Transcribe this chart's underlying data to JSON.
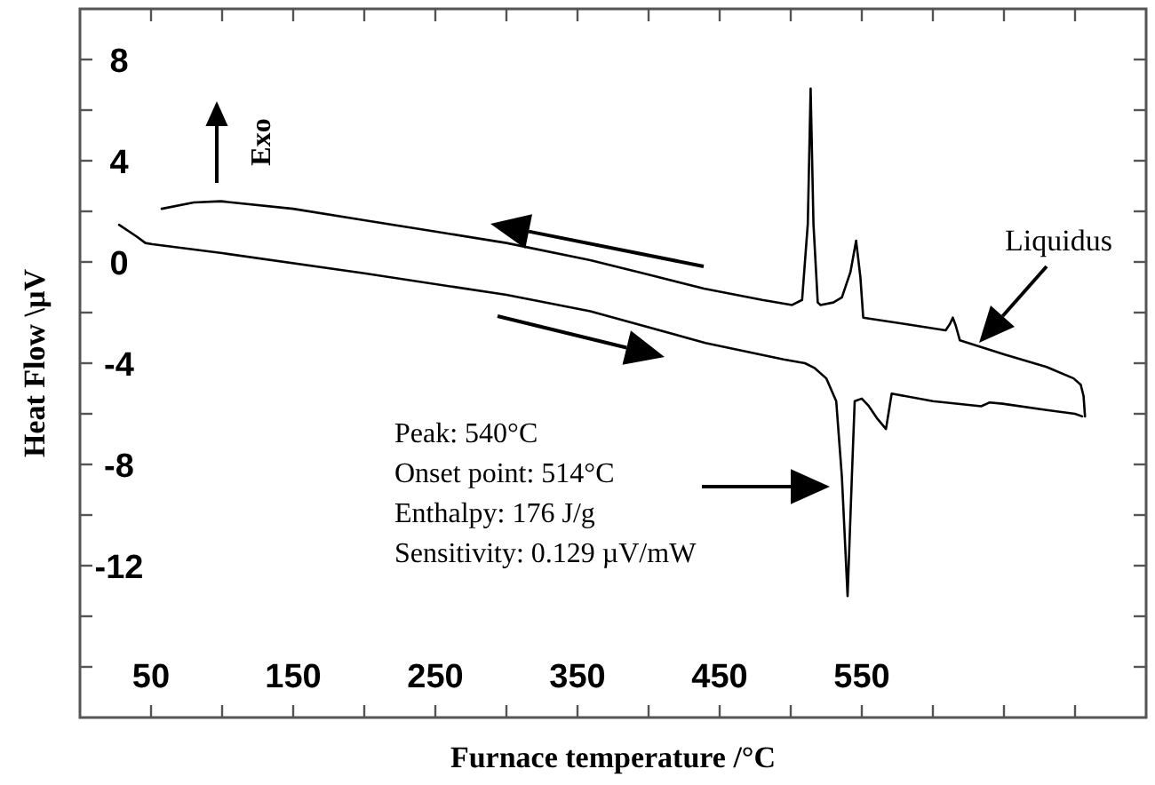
{
  "chart_data": {
    "type": "line",
    "xlabel": "Furnace temperature /°C",
    "ylabel": "Heat Flow \\µV",
    "xlim": [
      0,
      750
    ],
    "xticks": [
      50,
      {
        "value": 100,
        "label": null
      },
      150,
      {
        "value": 200,
        "label": null
      },
      250,
      {
        "value": 300,
        "label": null
      },
      350,
      {
        "value": 400,
        "label": null
      },
      450,
      {
        "value": 500,
        "label": null
      },
      550,
      {
        "value": 600,
        "label": null
      },
      {
        "value": 650,
        "label": null
      },
      {
        "value": 700,
        "label": null
      }
    ],
    "ylim": [
      -18,
      10
    ],
    "yticks": [
      {
        "value": -16,
        "label": null
      },
      {
        "value": -14,
        "label": null
      },
      -12,
      {
        "value": -10,
        "label": null
      },
      -8,
      {
        "value": -6,
        "label": null
      },
      -4,
      {
        "value": -2,
        "label": null
      },
      0,
      {
        "value": 2,
        "label": null
      },
      4,
      {
        "value": 6,
        "label": null
      },
      8
    ],
    "grid": false,
    "line_style": "solid",
    "marker": "none",
    "series": [
      {
        "color": "#000000",
        "x": [
          27.5,
          40,
          46,
          51,
          100,
          200,
          300,
          359,
          440,
          495,
          510,
          517,
          525,
          532,
          536,
          540,
          543,
          545,
          550,
          555,
          561,
          567,
          571,
          600,
          634,
          640,
          649,
          680,
          700,
          705
        ],
        "values": [
          1.47,
          1.0,
          0.75,
          0.7,
          0.35,
          -0.45,
          -1.3,
          -1.95,
          -3.2,
          -3.85,
          -4.0,
          -4.2,
          -4.6,
          -5.5,
          -8.5,
          -13.2,
          -8.5,
          -5.5,
          -5.4,
          -5.7,
          -6.2,
          -6.6,
          -5.2,
          -5.5,
          -5.7,
          -5.55,
          -5.6,
          -5.85,
          -6.0,
          -6.1
        ]
      },
      {
        "color": "#000000",
        "x": [
          57.5,
          80,
          99,
          150,
          200,
          250,
          300,
          359,
          400,
          439,
          480,
          501,
          508,
          512,
          514,
          516,
          519,
          521,
          530,
          536,
          542,
          546,
          549,
          551,
          580,
          609,
          612,
          614,
          616,
          619,
          650,
          680,
          699,
          704,
          706,
          707
        ],
        "values": [
          2.1,
          2.35,
          2.4,
          2.1,
          1.65,
          1.2,
          0.75,
          0.07,
          -0.5,
          -1.05,
          -1.5,
          -1.7,
          -1.5,
          1.5,
          6.85,
          1.5,
          -1.6,
          -1.7,
          -1.6,
          -1.4,
          -0.4,
          0.84,
          -0.6,
          -2.2,
          -2.45,
          -2.7,
          -2.45,
          -2.2,
          -2.5,
          -3.1,
          -3.65,
          -4.15,
          -4.6,
          -4.85,
          -5.3,
          -6.1
        ]
      }
    ],
    "annotations": [
      "Exo",
      "Liquidus",
      "Peak: 540°C",
      "Onset point: 514°C",
      "Enthalpy: 176 J/g",
      "Sensitivity: 0.129 µV/mW"
    ]
  }
}
